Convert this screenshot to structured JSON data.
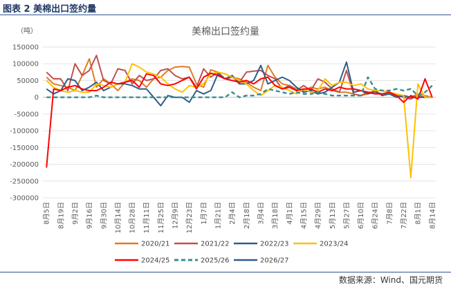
{
  "figure": {
    "caption": "图表 2  美棉出口签约量",
    "source": "数据来源：Wind、国元期货"
  },
  "chart_data": {
    "type": "line",
    "title": "美棉出口签约量",
    "unit_label": "（吨）",
    "ylim": [
      -300000,
      150000
    ],
    "y_ticks": [
      150000,
      100000,
      50000,
      0,
      -50000,
      -100000,
      -150000,
      -200000,
      -250000,
      -300000
    ],
    "x_tick_labels": [
      "8月5日",
      "8月19日",
      "9月2日",
      "9月16日",
      "9月30日",
      "10月14日",
      "10月28日",
      "11月11日",
      "11月25日",
      "12月9日",
      "12月23日",
      "1月7日",
      "1月21日",
      "2月4日",
      "2月18日",
      "3月4日",
      "3月18日",
      "4月1日",
      "4月15日",
      "4月29日",
      "5月13日",
      "5月27日",
      "6月10日",
      "6月24日",
      "7月8日",
      "7月22日",
      "8月1日",
      "8月14日"
    ],
    "x_tick_index": [
      0,
      2,
      4,
      6,
      8,
      10,
      12,
      14,
      16,
      18,
      20,
      22,
      24,
      26,
      28,
      30,
      32,
      34,
      36,
      38,
      40,
      42,
      44,
      46,
      48,
      50,
      52,
      54
    ],
    "x_count": 55,
    "grid": true,
    "legend_position": "bottom",
    "series": [
      {
        "name": "2020/21",
        "color": "#e07b22",
        "dash": false,
        "values": [
          60000,
          40000,
          35000,
          30000,
          20000,
          65000,
          115000,
          30000,
          55000,
          40000,
          20000,
          45000,
          55000,
          50000,
          30000,
          55000,
          60000,
          80000,
          90000,
          92000,
          90000,
          40000,
          30000,
          82000,
          75000,
          70000,
          60000,
          55000,
          45000,
          30000,
          20000,
          95000,
          60000,
          40000,
          35000,
          25000,
          20000,
          30000,
          25000,
          30000,
          20000,
          15000,
          15000,
          10000,
          5000,
          10000,
          15000,
          10000,
          10000,
          5000,
          5000,
          0,
          10000,
          5000,
          0
        ]
      },
      {
        "name": "2021/22",
        "color": "#c0504d",
        "dash": false,
        "values": [
          75000,
          55000,
          55000,
          20000,
          100000,
          65000,
          80000,
          125000,
          50000,
          40000,
          85000,
          80000,
          40000,
          65000,
          50000,
          55000,
          80000,
          85000,
          65000,
          55000,
          60000,
          30000,
          85000,
          60000,
          75000,
          55000,
          60000,
          45000,
          75000,
          78000,
          80000,
          65000,
          55000,
          25000,
          35000,
          20000,
          35000,
          20000,
          55000,
          45000,
          25000,
          15000,
          80000,
          10000,
          5000,
          15000,
          15000,
          10000,
          15000,
          5000,
          0,
          -5000,
          5000,
          0,
          0
        ]
      },
      {
        "name": "2022/23",
        "color": "#2e5c8a",
        "dash": false,
        "values": [
          25000,
          10000,
          20000,
          55000,
          50000,
          20000,
          30000,
          45000,
          20000,
          30000,
          40000,
          40000,
          35000,
          25000,
          25000,
          0,
          -25000,
          5000,
          0,
          0,
          -15000,
          20000,
          10000,
          20000,
          70000,
          55000,
          65000,
          40000,
          40000,
          50000,
          95000,
          40000,
          50000,
          60000,
          50000,
          30000,
          15000,
          20000,
          10000,
          15000,
          30000,
          45000,
          105000,
          15000,
          20000,
          10000,
          20000,
          5000,
          10000,
          0,
          5000,
          0,
          0,
          0,
          0
        ]
      },
      {
        "name": "2023/24",
        "color": "#ffc000",
        "dash": false,
        "values": [
          50000,
          30000,
          20000,
          15000,
          20000,
          15000,
          15000,
          40000,
          35000,
          30000,
          40000,
          45000,
          100000,
          90000,
          75000,
          70000,
          60000,
          40000,
          25000,
          15000,
          35000,
          30000,
          40000,
          70000,
          75000,
          70000,
          60000,
          50000,
          40000,
          20000,
          5000,
          20000,
          35000,
          30000,
          20000,
          10000,
          25000,
          15000,
          20000,
          55000,
          35000,
          45000,
          45000,
          35000,
          40000,
          25000,
          20000,
          20000,
          15000,
          10000,
          5000,
          -240000,
          40000,
          0,
          0
        ]
      },
      {
        "name": "2024/25",
        "color": "#ff0000",
        "dash": false,
        "values": [
          -210000,
          25000,
          20000,
          30000,
          35000,
          25000,
          20000,
          20000,
          30000,
          45000,
          40000,
          45000,
          50000,
          30000,
          70000,
          65000,
          40000,
          35000,
          40000,
          50000,
          60000,
          25000,
          60000,
          72000,
          65000,
          55000,
          50000,
          45000,
          50000,
          40000,
          55000,
          60000,
          35000,
          25000,
          30000,
          20000,
          25000,
          25000,
          15000,
          25000,
          20000,
          30000,
          25000,
          25000,
          20000,
          15000,
          10000,
          10000,
          15000,
          5000,
          -15000,
          5000,
          -5000,
          55000,
          0
        ]
      },
      {
        "name": "2025/26",
        "color": "#3a8c8c",
        "dash": true,
        "values": [
          0,
          0,
          0,
          0,
          0,
          0,
          0,
          5000,
          0,
          0,
          0,
          0,
          0,
          0,
          0,
          0,
          0,
          0,
          0,
          0,
          0,
          0,
          0,
          0,
          0,
          0,
          15000,
          0,
          5000,
          5000,
          10000,
          25000,
          20000,
          15000,
          10000,
          15000,
          10000,
          10000,
          15000,
          10000,
          5000,
          5000,
          5000,
          5000,
          5000,
          60000,
          25000,
          20000,
          20000,
          25000,
          20000,
          25000,
          5000,
          15000,
          35000
        ]
      },
      {
        "name": "2026/27",
        "color": "#2e5c8a",
        "dash": false,
        "values": []
      }
    ]
  }
}
